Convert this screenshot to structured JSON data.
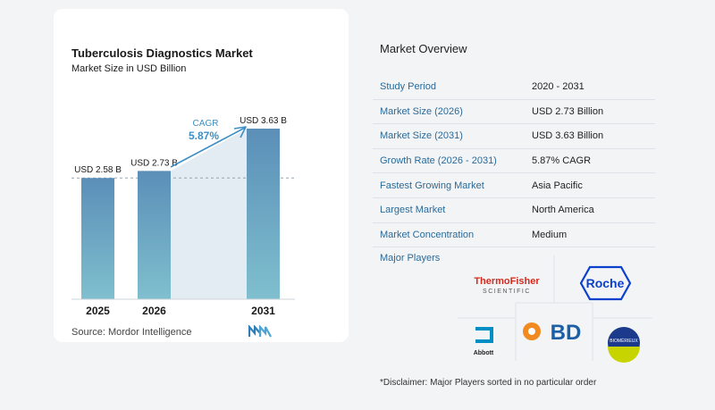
{
  "chart_data": {
    "type": "bar",
    "title": "Tuberculosis Diagnostics Market",
    "subtitle": "Market Size in USD Billion",
    "categories": [
      "2025",
      "2026",
      "2031"
    ],
    "values": [
      2.58,
      2.73,
      3.63
    ],
    "data_labels": [
      "USD 2.58 B",
      "USD 2.73 B",
      "USD 3.63 B"
    ],
    "cagr_label": "CAGR",
    "cagr_value": "5.87%",
    "colors": {
      "bar_top": "#5b8fb8",
      "bar_bottom": "#7fbfce",
      "band": "#e3ebf3",
      "accent": "#3d8fc6"
    }
  },
  "source": "Source:  Mordor Intelligence",
  "overview": {
    "title": "Market Overview",
    "rows": [
      {
        "key": "Study Period",
        "value": "2020 - 2031"
      },
      {
        "key": "Market Size (2026)",
        "value": "USD 2.73 Billion"
      },
      {
        "key": "Market Size (2031)",
        "value": "USD 3.63 Billion"
      },
      {
        "key": "Growth Rate (2026 - 2031)",
        "value": "5.87% CAGR"
      },
      {
        "key": "Fastest Growing Market",
        "value": "Asia Pacific"
      },
      {
        "key": "Largest Market",
        "value": "North America"
      },
      {
        "key": "Market Concentration",
        "value": "Medium"
      }
    ]
  },
  "players": {
    "label": "Major Players",
    "logos": {
      "thermo_line1": "ThermoFisher",
      "thermo_line2": "SCIENTIFIC",
      "roche": "Roche",
      "abbott": "Abbott",
      "bd": "BD",
      "biomerieux": "BIOMÉRIEUX"
    }
  },
  "disclaimer": "*Disclaimer: Major Players sorted in no particular order"
}
